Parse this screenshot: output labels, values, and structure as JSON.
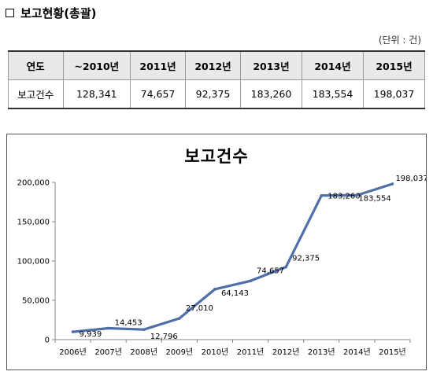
{
  "heading": {
    "checkbox_icon": "empty-square-icon",
    "title": "보고현황(총괄)"
  },
  "unit_note": "(단위 : 건)",
  "table": {
    "header_label": "연도",
    "row_label": "보고건수",
    "years": [
      "~2010년",
      "2011년",
      "2012년",
      "2013년",
      "2014년",
      "2015년"
    ],
    "counts": [
      "128,341",
      "74,657",
      "92,375",
      "183,260",
      "183,554",
      "198,037"
    ]
  },
  "chart_data": {
    "type": "line",
    "title": "보고건수",
    "categories": [
      "2006년",
      "2007년",
      "2008년",
      "2009년",
      "2010년",
      "2011년",
      "2012년",
      "2013년",
      "2014년",
      "2015년"
    ],
    "values": [
      9939,
      14453,
      12796,
      27010,
      64143,
      74657,
      92375,
      183260,
      183554,
      198037
    ],
    "value_labels": [
      "9,939",
      "14,453",
      "12,796",
      "27,010",
      "64,143",
      "74,657",
      "92,375",
      "183,260",
      "183,554",
      "198,037"
    ],
    "yticks": [
      "0",
      "50,000",
      "100,000",
      "150,000",
      "200,000"
    ],
    "ylim": [
      0,
      200000
    ],
    "grid": false,
    "legend": "none",
    "line_color": "#4f6fa8"
  }
}
